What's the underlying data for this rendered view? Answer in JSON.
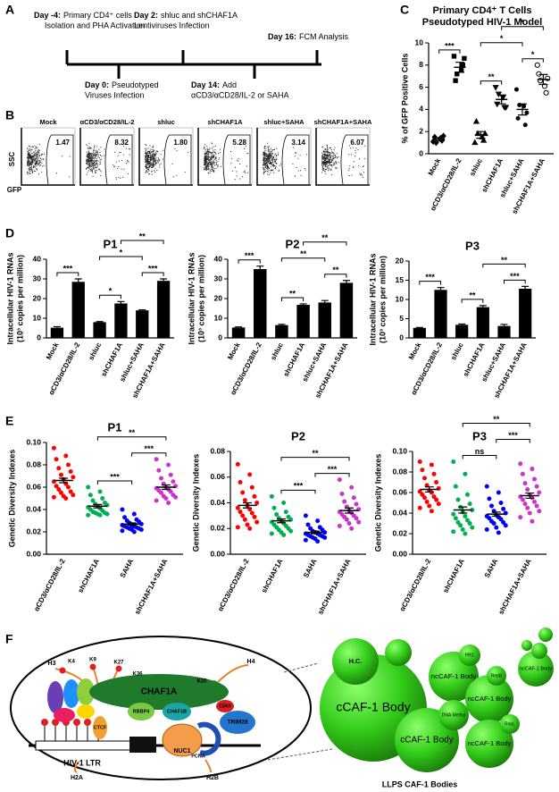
{
  "panel_labels": [
    "A",
    "B",
    "C",
    "D",
    "E",
    "F"
  ],
  "timeline": {
    "events": [
      {
        "day": "Day -4:",
        "text": [
          "Primary CD4⁺ cells",
          "Isolation and PHA Activation"
        ]
      },
      {
        "day": "Day 0:",
        "text": [
          "Pseudotyped",
          "Viruses Infection"
        ]
      },
      {
        "day": "Day 2:",
        "text": [
          "shluc and shCHAF1A",
          "Lentiviruses Infection"
        ]
      },
      {
        "day": "Day 14:",
        "text": [
          "Add",
          "αCD3/αCD28/IL-2 or SAHA"
        ]
      },
      {
        "day": "Day 16:",
        "text": [
          "FCM Analysis"
        ]
      }
    ]
  },
  "flow": {
    "y_label": "SSC",
    "x_label": "GFP",
    "plots": [
      {
        "name": "Mock",
        "percent": "1.47"
      },
      {
        "name": "αCD3/αCD28/IL-2",
        "percent": "8.32"
      },
      {
        "name": "shluc",
        "percent": "1.80"
      },
      {
        "name": "shCHAF1A",
        "percent": "5.28"
      },
      {
        "name": "shluc+SAHA",
        "percent": "3.14"
      },
      {
        "name": "shCHAF1A+SAHA",
        "percent": "6.07"
      }
    ]
  },
  "chart_data": [
    {
      "type": "dot",
      "title": "Primary CD4⁺ T Cells",
      "subtitle": "Pseudotyped HIV-1 Model",
      "ylabel": "% of GFP Positive Cells",
      "categories": [
        "Mock",
        "αCD3/αCD28/IL-2",
        "shluc",
        "shCHAF1A",
        "shluc+SAHA",
        "shCHAF1A+SAHA"
      ],
      "values": [
        [
          1.1,
          1.4,
          1.5,
          1.2,
          1.0,
          1.6
        ],
        [
          8.8,
          7.6,
          6.6,
          8.0,
          7.2,
          8.6
        ],
        [
          1.0,
          1.5,
          2.9,
          1.2,
          1.8,
          1.8
        ],
        [
          6.0,
          5.1,
          4.5,
          4.2,
          5.4,
          4.2
        ],
        [
          5.8,
          4.3,
          3.2,
          2.6,
          4.4,
          3.7
        ],
        [
          8.0,
          6.1,
          7.2,
          5.5,
          6.6,
          6.8
        ]
      ],
      "means": [
        1.3,
        7.8,
        1.7,
        4.9,
        4.0,
        6.7
      ],
      "sems": [
        0.15,
        0.45,
        0.3,
        0.4,
        0.5,
        0.45
      ],
      "markers": [
        "diamond",
        "square",
        "triangle",
        "triangle-down",
        "circle",
        "circle-open"
      ],
      "color": "#000000",
      "ylim": [
        0,
        10
      ],
      "yticks": [
        0,
        2,
        4,
        6,
        8,
        10
      ],
      "comparisons": [
        {
          "between": [
            0,
            1
          ],
          "label": "***"
        },
        {
          "between": [
            2,
            3
          ],
          "label": "**"
        },
        {
          "between": [
            2,
            4
          ],
          "label": "*"
        },
        {
          "between": [
            4,
            5
          ],
          "label": "*"
        },
        {
          "between": [
            3,
            5
          ],
          "label": "*"
        }
      ]
    },
    {
      "type": "bar",
      "title": "P1",
      "ylabel": [
        "Intracellular HIV-1 RNAs",
        "(10³ copies per million)"
      ],
      "categories": [
        "Mock",
        "αCD3/αCD28/IL-2",
        "shluc",
        "shCHAF1A",
        "shluc+SAHA",
        "shCHAF1A+SAHA"
      ],
      "values": [
        5.2,
        28.5,
        8,
        17.5,
        14,
        29
      ],
      "errors": [
        0.5,
        1.5,
        0.3,
        1,
        0.3,
        1
      ],
      "color": "#000000",
      "ylim": [
        0,
        40
      ],
      "yticks": [
        0,
        10,
        20,
        30,
        40
      ],
      "comparisons": [
        {
          "between": [
            0,
            1
          ],
          "label": "***"
        },
        {
          "between": [
            2,
            3
          ],
          "label": "*"
        },
        {
          "between": [
            2,
            4
          ],
          "label": "*"
        },
        {
          "between": [
            4,
            5
          ],
          "label": "***"
        },
        {
          "between": [
            3,
            5
          ],
          "label": "**"
        }
      ]
    },
    {
      "type": "bar",
      "title": "P2",
      "ylabel": [
        "Intracellular HIV-1 RNAs",
        "(10³ copies per million)"
      ],
      "categories": [
        "Mock",
        "αCD3/αCD28/IL-2",
        "shluc",
        "shCHAF1A",
        "shluc+SAHA",
        "shCHAF1A+SAHA"
      ],
      "values": [
        5.3,
        35,
        6.5,
        16.8,
        18,
        28
      ],
      "errors": [
        0.3,
        1.5,
        0.4,
        0.5,
        1,
        1.2
      ],
      "color": "#000000",
      "ylim": [
        0,
        40
      ],
      "yticks": [
        0,
        10,
        20,
        30,
        40
      ],
      "comparisons": [
        {
          "between": [
            0,
            1
          ],
          "label": "***"
        },
        {
          "between": [
            2,
            3
          ],
          "label": "**"
        },
        {
          "between": [
            2,
            4
          ],
          "label": "**"
        },
        {
          "between": [
            4,
            5
          ],
          "label": "**"
        },
        {
          "between": [
            3,
            5
          ],
          "label": "**"
        }
      ]
    },
    {
      "type": "bar",
      "title": "P3",
      "ylabel": [
        "Intracellular HIV-1 RNAs",
        "(10³ copies per million)"
      ],
      "categories": [
        "Mock",
        "αCD3/αCD28/IL-2",
        "shluc",
        "shCHAF1A",
        "shluc+SAHA",
        "shCHAF1A+SAHA"
      ],
      "values": [
        2.6,
        12.5,
        3.4,
        8,
        3.1,
        12.8
      ],
      "errors": [
        0.1,
        0.6,
        0.2,
        0.4,
        0.4,
        0.6
      ],
      "color": "#000000",
      "ylim": [
        0,
        20
      ],
      "yticks": [
        0,
        5,
        10,
        15,
        20
      ],
      "comparisons": [
        {
          "between": [
            0,
            1
          ],
          "label": "***"
        },
        {
          "between": [
            2,
            3
          ],
          "label": "**"
        },
        {
          "between": [
            4,
            5
          ],
          "label": "***"
        },
        {
          "between": [
            3,
            5
          ],
          "label": "**"
        }
      ]
    },
    {
      "type": "dot",
      "title": "P1",
      "ylabel": "Genetic Diversity Indexes",
      "categories": [
        "αCD3/αCD28/IL-2",
        "shCHAF1A",
        "SAHA",
        "shCHAF1A+SAHA"
      ],
      "colors": [
        "#ff0000",
        "#00b050",
        "#0000ff",
        "#cc33cc"
      ],
      "values": [
        [
          0.095,
          0.088,
          0.085,
          0.08,
          0.077,
          0.074,
          0.071,
          0.069,
          0.067,
          0.065,
          0.063,
          0.061,
          0.06,
          0.058,
          0.056,
          0.055,
          0.053,
          0.052,
          0.051,
          0.05
        ],
        [
          0.06,
          0.056,
          0.053,
          0.05,
          0.048,
          0.046,
          0.045,
          0.044,
          0.043,
          0.042,
          0.041,
          0.04,
          0.039,
          0.038,
          0.037,
          0.037,
          0.036,
          0.036,
          0.035,
          0.035
        ],
        [
          0.04,
          0.036,
          0.033,
          0.031,
          0.03,
          0.029,
          0.028,
          0.027,
          0.026,
          0.026,
          0.025,
          0.025,
          0.024,
          0.024,
          0.023,
          0.023,
          0.022,
          0.022,
          0.021,
          0.02
        ],
        [
          0.085,
          0.08,
          0.075,
          0.071,
          0.068,
          0.065,
          0.063,
          0.061,
          0.06,
          0.059,
          0.058,
          0.057,
          0.056,
          0.055,
          0.053,
          0.052,
          0.051,
          0.05,
          0.048,
          0.046
        ]
      ],
      "means": [
        0.066,
        0.043,
        0.027,
        0.06
      ],
      "sems": [
        0.002,
        0.0015,
        0.001,
        0.002
      ],
      "ylim": [
        0,
        0.1
      ],
      "yticks": [
        {
          "value": 0,
          "label": "0.00"
        },
        {
          "value": 0.02,
          "label": "0.02"
        },
        {
          "value": 0.04,
          "label": "0.04"
        },
        {
          "value": 0.06,
          "label": "0.06"
        },
        {
          "value": 0.08,
          "label": "0.08"
        },
        {
          "value": 0.1,
          "label": "0.10"
        }
      ],
      "comparisons": [
        {
          "between": [
            1,
            2
          ],
          "label": "***"
        },
        {
          "between": [
            2,
            3
          ],
          "label": "***"
        },
        {
          "between": [
            1,
            3
          ],
          "label": "**"
        }
      ]
    },
    {
      "type": "dot",
      "title": "P2",
      "ylabel": "Genetic Diversity Indexes",
      "categories": [
        "αCD3/αCD28/IL-2",
        "shCHAF1A",
        "SAHA",
        "shCHAF1A+SAHA"
      ],
      "colors": [
        "#ff0000",
        "#00b050",
        "#0000ff",
        "#cc33cc"
      ],
      "values": [
        [
          0.07,
          0.062,
          0.056,
          0.052,
          0.048,
          0.045,
          0.042,
          0.04,
          0.038,
          0.036,
          0.035,
          0.033,
          0.032,
          0.03,
          0.029,
          0.027,
          0.025,
          0.023,
          0.021,
          0.02
        ],
        [
          0.045,
          0.04,
          0.036,
          0.033,
          0.031,
          0.029,
          0.028,
          0.027,
          0.026,
          0.025,
          0.024,
          0.023,
          0.022,
          0.021,
          0.02,
          0.019,
          0.018,
          0.017,
          0.016,
          0.015
        ],
        [
          0.03,
          0.026,
          0.023,
          0.021,
          0.02,
          0.019,
          0.018,
          0.017,
          0.017,
          0.016,
          0.016,
          0.015,
          0.015,
          0.014,
          0.014,
          0.013,
          0.013,
          0.012,
          0.011,
          0.01
        ],
        [
          0.058,
          0.052,
          0.047,
          0.044,
          0.041,
          0.039,
          0.037,
          0.035,
          0.034,
          0.033,
          0.032,
          0.031,
          0.03,
          0.029,
          0.028,
          0.027,
          0.025,
          0.024,
          0.022,
          0.02
        ]
      ],
      "means": [
        0.038,
        0.026,
        0.017,
        0.034
      ],
      "sems": [
        0.002,
        0.0015,
        0.001,
        0.002
      ],
      "ylim": [
        0,
        0.08
      ],
      "yticks": [
        {
          "value": 0,
          "label": "0.00"
        },
        {
          "value": 0.02,
          "label": "0.02"
        },
        {
          "value": 0.04,
          "label": "0.04"
        },
        {
          "value": 0.06,
          "label": "0.06"
        },
        {
          "value": 0.08,
          "label": "0.08"
        }
      ],
      "comparisons": [
        {
          "between": [
            1,
            2
          ],
          "label": "***"
        },
        {
          "between": [
            2,
            3
          ],
          "label": "***"
        },
        {
          "between": [
            1,
            3
          ],
          "label": "**"
        }
      ]
    },
    {
      "type": "dot",
      "title": "P3",
      "ylabel": "Genetic Diversity Indexes",
      "categories": [
        "αCD3/αCD28/IL-2",
        "shCHAF1A",
        "SAHA",
        "shCHAF1A+SAHA"
      ],
      "colors": [
        "#ff0000",
        "#00b050",
        "#0000ff",
        "#cc33cc"
      ],
      "values": [
        [
          0.09,
          0.087,
          0.082,
          0.078,
          0.074,
          0.07,
          0.067,
          0.064,
          0.062,
          0.061,
          0.06,
          0.058,
          0.056,
          0.055,
          0.053,
          0.051,
          0.049,
          0.047,
          0.045,
          0.042
        ],
        [
          0.09,
          0.078,
          0.066,
          0.058,
          0.053,
          0.049,
          0.046,
          0.043,
          0.041,
          0.039,
          0.037,
          0.035,
          0.033,
          0.031,
          0.03,
          0.028,
          0.026,
          0.024,
          0.022,
          0.02
        ],
        [
          0.066,
          0.06,
          0.054,
          0.05,
          0.047,
          0.044,
          0.042,
          0.04,
          0.038,
          0.037,
          0.036,
          0.035,
          0.034,
          0.032,
          0.031,
          0.03,
          0.028,
          0.026,
          0.024,
          0.021
        ],
        [
          0.088,
          0.083,
          0.078,
          0.073,
          0.069,
          0.066,
          0.063,
          0.06,
          0.058,
          0.056,
          0.055,
          0.053,
          0.051,
          0.049,
          0.047,
          0.045,
          0.042,
          0.04,
          0.036,
          0.032
        ]
      ],
      "means": [
        0.063,
        0.043,
        0.039,
        0.057
      ],
      "sems": [
        0.0025,
        0.003,
        0.002,
        0.0025
      ],
      "ylim": [
        0,
        0.1
      ],
      "yticks": [
        {
          "value": 0,
          "label": "0.00"
        },
        {
          "value": 0.02,
          "label": "0.02"
        },
        {
          "value": 0.04,
          "label": "0.04"
        },
        {
          "value": 0.06,
          "label": "0.06"
        },
        {
          "value": 0.08,
          "label": "0.08"
        },
        {
          "value": 0.1,
          "label": "0.10"
        }
      ],
      "comparisons": [
        {
          "between": [
            1,
            2
          ],
          "label": "ns"
        },
        {
          "between": [
            2,
            3
          ],
          "label": "***"
        },
        {
          "between": [
            1,
            3
          ],
          "label": "**"
        }
      ]
    }
  ],
  "figure_f": {
    "chromatin_labels": [
      "H3",
      "K4",
      "K9",
      "K27",
      "K36",
      "H4",
      "K20",
      "CHAF1A",
      "RBBP4",
      "CHAF1B",
      "CTCF",
      "NUC1",
      "PCNA",
      "TRIM28",
      "CDK9",
      "HIV-1 LTR",
      "H2A",
      "H2B"
    ],
    "bodies": [
      "H.C.",
      "cCAF-1 Body",
      "PRC",
      "ncCAF-1 Body",
      "RepB",
      "ncCAF-1 Body",
      "ncCAF-1 Body",
      "DNA Methyl",
      "cCAF-1 Body",
      "RepL",
      "ncCAF-1 Body"
    ],
    "caption": "LLPS CAF-1 Bodies"
  }
}
